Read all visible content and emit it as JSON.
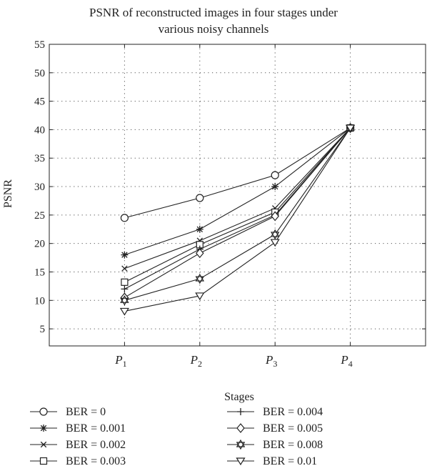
{
  "chart_data": {
    "type": "line",
    "title_line1": "PSNR of reconstructed images in four stages under",
    "title_line2": "various noisy channels",
    "xlabel": "Stages",
    "ylabel": "PSNR",
    "categories": [
      "P1",
      "P2",
      "P3",
      "P4"
    ],
    "category_main": "P",
    "category_subs": [
      "1",
      "2",
      "3",
      "4"
    ],
    "xlim": [
      0,
      5
    ],
    "x": [
      1,
      2,
      3,
      4
    ],
    "ylim": [
      2,
      55
    ],
    "yticks": [
      5,
      10,
      15,
      20,
      25,
      30,
      35,
      40,
      45,
      50,
      55
    ],
    "grid": true,
    "legend_position": "bottom",
    "series": [
      {
        "name": "BER = 0",
        "marker": "circle",
        "values": [
          24.5,
          28.0,
          32.0,
          40.3
        ]
      },
      {
        "name": "BER = 0.001",
        "marker": "asterisk",
        "values": [
          18.0,
          22.5,
          30.0,
          40.3
        ]
      },
      {
        "name": "BER = 0.002",
        "marker": "x",
        "values": [
          15.6,
          20.5,
          26.2,
          40.3
        ]
      },
      {
        "name": "BER = 0.003",
        "marker": "square",
        "values": [
          13.2,
          19.8,
          25.5,
          40.3
        ]
      },
      {
        "name": "BER = 0.004",
        "marker": "plus",
        "values": [
          12.0,
          19.0,
          25.0,
          40.3
        ]
      },
      {
        "name": "BER = 0.005",
        "marker": "diamond",
        "values": [
          10.5,
          18.3,
          24.8,
          40.3
        ]
      },
      {
        "name": "BER = 0.008",
        "marker": "hexagram",
        "values": [
          10.0,
          13.8,
          21.6,
          40.3
        ]
      },
      {
        "name": "BER = 0.01",
        "marker": "triangle-down",
        "values": [
          8.1,
          10.8,
          20.2,
          40.3
        ]
      }
    ]
  }
}
